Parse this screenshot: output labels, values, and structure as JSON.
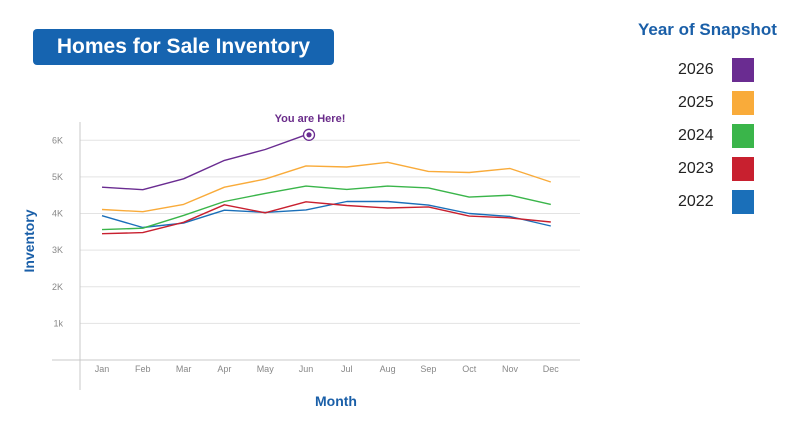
{
  "chart_data": {
    "type": "line",
    "title": "Homes for Sale Inventory",
    "xlabel": "Month",
    "ylabel": "Inventory",
    "categories": [
      "Jan",
      "Feb",
      "Mar",
      "Apr",
      "May",
      "Jun",
      "Jul",
      "Aug",
      "Sep",
      "Oct",
      "Nov",
      "Dec"
    ],
    "ylim": [
      0,
      6500
    ],
    "yticks": [
      {
        "value": 1000,
        "label": "1k"
      },
      {
        "value": 2000,
        "label": "2K"
      },
      {
        "value": 3000,
        "label": "3K"
      },
      {
        "value": 4000,
        "label": "4K"
      },
      {
        "value": 5000,
        "label": "5K"
      },
      {
        "value": 6000,
        "label": "6K"
      }
    ],
    "grid": true,
    "legend_title": "Year of Snapshot",
    "legend_position": "right",
    "series": [
      {
        "name": "2026",
        "color": "#6a2c91",
        "values": [
          4720,
          4650,
          4950,
          5450,
          5750,
          6150,
          null,
          null,
          null,
          null,
          null,
          null
        ]
      },
      {
        "name": "2025",
        "color": "#f9ab3a",
        "values": [
          4110,
          4050,
          4250,
          4720,
          4940,
          5300,
          5270,
          5400,
          5150,
          5120,
          5230,
          4860
        ]
      },
      {
        "name": "2024",
        "color": "#3ab54a",
        "values": [
          3560,
          3600,
          3950,
          4330,
          4550,
          4750,
          4660,
          4750,
          4700,
          4450,
          4500,
          4250
        ]
      },
      {
        "name": "2023",
        "color": "#c8202f",
        "values": [
          3450,
          3480,
          3760,
          4240,
          4020,
          4320,
          4220,
          4150,
          4180,
          3930,
          3880,
          3770
        ]
      },
      {
        "name": "2022",
        "color": "#1a6fb9",
        "values": [
          3940,
          3620,
          3740,
          4090,
          4030,
          4100,
          4330,
          4330,
          4230,
          4000,
          3920,
          3660
        ]
      }
    ],
    "annotations": [
      {
        "text": "You are Here!",
        "series": "2026",
        "x": "Jun",
        "y": 6150
      }
    ]
  }
}
